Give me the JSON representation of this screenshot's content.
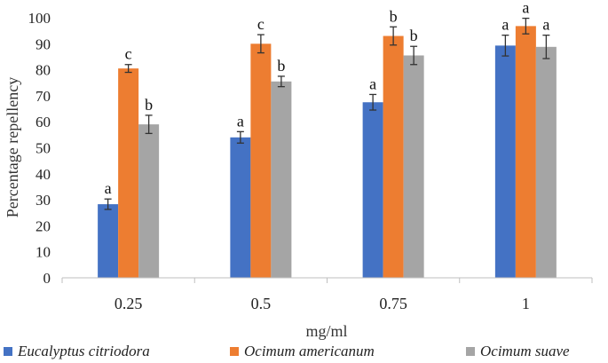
{
  "chart_data": {
    "type": "bar",
    "title": "",
    "xlabel": "mg/ml",
    "ylabel": "Percentage repellency",
    "ylim": [
      0,
      100
    ],
    "yticks": [
      0,
      10,
      20,
      30,
      40,
      50,
      60,
      70,
      80,
      90,
      100
    ],
    "categories": [
      "0.25",
      "0.5",
      "0.75",
      "1"
    ],
    "grid": false,
    "legend_position": "bottom",
    "series": [
      {
        "name": "Eucalyptus citriodora",
        "color": "#4472C4",
        "values": [
          28.3,
          54,
          67.5,
          89.3
        ],
        "errors": [
          2,
          2.2,
          3,
          4
        ],
        "labels": [
          "a",
          "a",
          "a",
          "a"
        ]
      },
      {
        "name": "Ocimum americanum",
        "color": "#ED7D31",
        "values": [
          80.5,
          90,
          93,
          96.8
        ],
        "errors": [
          1.5,
          3.5,
          3.5,
          3
        ],
        "labels": [
          "c",
          "c",
          "b",
          "a"
        ]
      },
      {
        "name": "Ocimum suave",
        "color": "#A5A5A5",
        "values": [
          59,
          75.5,
          85.5,
          88.8
        ],
        "errors": [
          3.5,
          2,
          3.5,
          4.5
        ],
        "labels": [
          "b",
          "b",
          "b",
          "a"
        ]
      }
    ]
  }
}
